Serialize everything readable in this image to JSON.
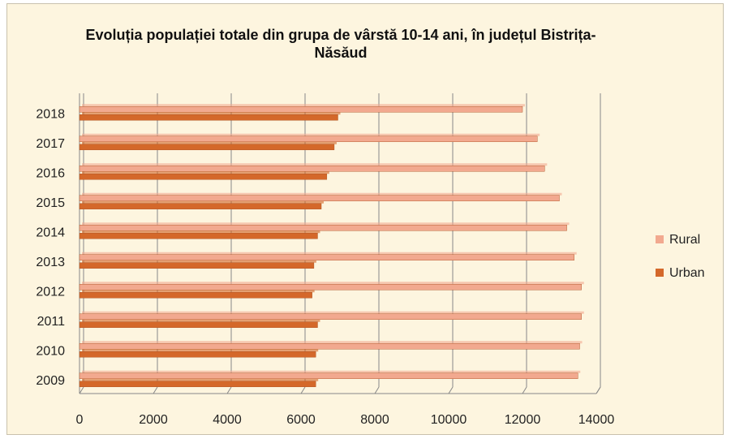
{
  "chart_data": {
    "type": "bar",
    "orientation": "horizontal",
    "title": "Evoluția populației totale din grupa de vârstă 10-14 ani, în județul Bistrița-Năsăud",
    "categories": [
      "2009",
      "2010",
      "2011",
      "2012",
      "2013",
      "2014",
      "2015",
      "2016",
      "2017",
      "2018"
    ],
    "series": [
      {
        "name": "Rural",
        "color": "#f2a98f",
        "values": [
          13500,
          13550,
          13600,
          13600,
          13400,
          13200,
          13000,
          12600,
          12400,
          12000
        ]
      },
      {
        "name": "Urban",
        "color": "#d4682a",
        "values": [
          6400,
          6400,
          6450,
          6300,
          6350,
          6450,
          6550,
          6700,
          6900,
          7000
        ]
      }
    ],
    "xlim": [
      0,
      14000
    ],
    "xticks": [
      0,
      2000,
      4000,
      6000,
      8000,
      10000,
      12000,
      14000
    ],
    "grid": true,
    "legend": "right"
  }
}
